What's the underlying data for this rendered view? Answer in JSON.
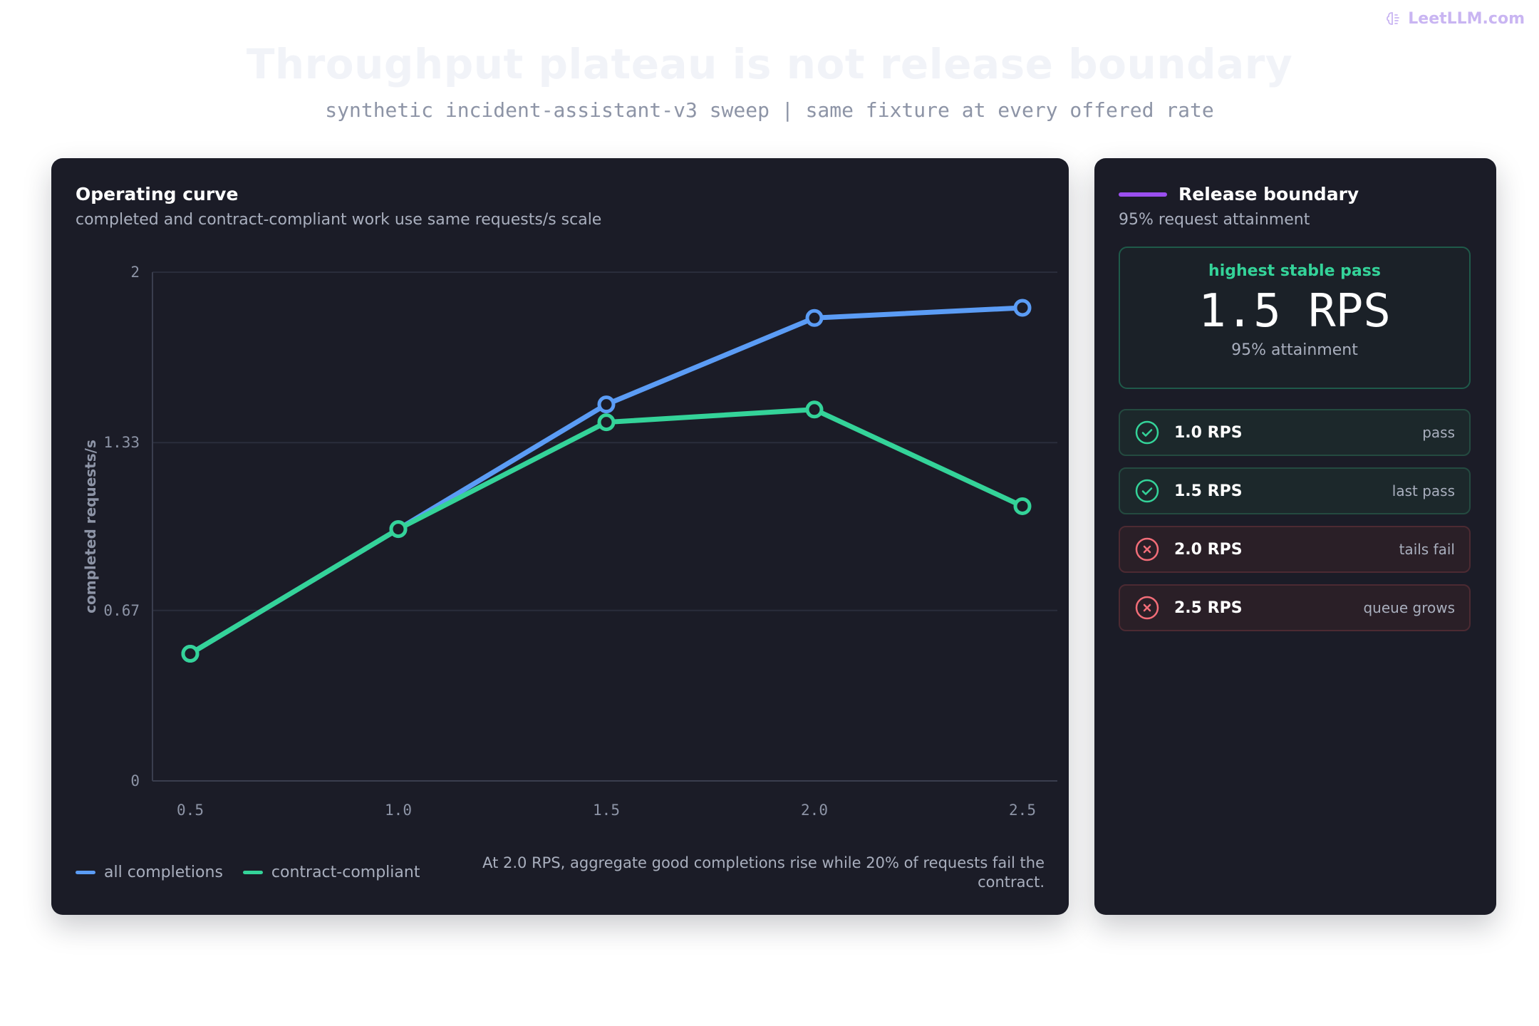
{
  "brand": {
    "name": "LeetLLM.com",
    "color": "#c9b5f2"
  },
  "header": {
    "title": "Throughput plateau is not release boundary",
    "subtitle": "synthetic incident-assistant-v3 sweep | same fixture at every offered rate"
  },
  "chart_panel": {
    "title": "Operating curve",
    "subtitle": "completed and contract-compliant work use same requests/s scale",
    "note": "At 2.0 RPS, aggregate good completions rise while 20% of requests fail the contract."
  },
  "chart_data": {
    "type": "line",
    "x": [
      0.5,
      1.0,
      1.5,
      2.0,
      2.5
    ],
    "x_tick_labels": [
      "0.5",
      "1.0",
      "1.5",
      "2.0",
      "2.5"
    ],
    "y_ticks": [
      0,
      0.67,
      1.33,
      2
    ],
    "y_tick_labels": [
      "0",
      "0.67",
      "1.33",
      "2"
    ],
    "ylim": [
      0,
      2
    ],
    "xlabel": "",
    "ylabel": "completed requests/s",
    "grid": true,
    "legend_position": "bottom-left",
    "series": [
      {
        "name": "all completions",
        "color": "#5b9cf5",
        "values": [
          0.5,
          0.99,
          1.48,
          1.82,
          1.86
        ]
      },
      {
        "name": "contract-compliant",
        "color": "#34d399",
        "values": [
          0.5,
          0.99,
          1.41,
          1.46,
          1.08
        ]
      }
    ]
  },
  "side_panel": {
    "title": "Release boundary",
    "accent": "#9b4ff0",
    "subtitle": "95% request attainment",
    "hero": {
      "label": "highest stable pass",
      "value": "1.5 RPS",
      "foot": "95% attainment"
    },
    "rows": [
      {
        "rate": "1.0 RPS",
        "status": "pass",
        "result": "pass-icon"
      },
      {
        "rate": "1.5 RPS",
        "status": "last pass",
        "result": "pass-icon"
      },
      {
        "rate": "2.0 RPS",
        "status": "tails fail",
        "result": "fail-icon"
      },
      {
        "rate": "2.5 RPS",
        "status": "queue grows",
        "result": "fail-icon"
      }
    ]
  }
}
